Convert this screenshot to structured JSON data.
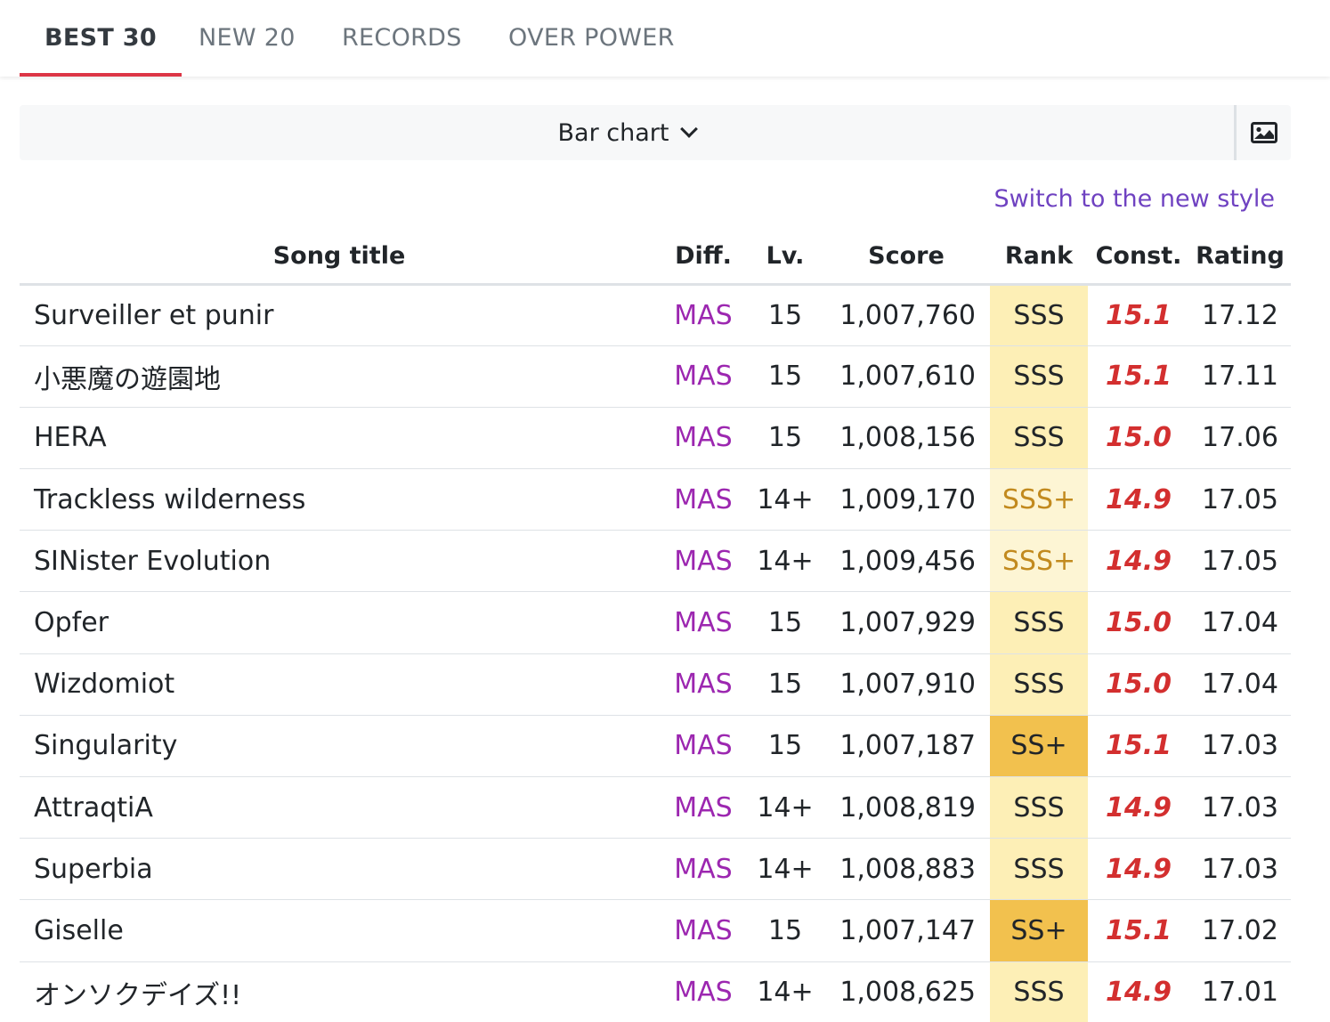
{
  "tabs": [
    {
      "label": "BEST 30",
      "active": true
    },
    {
      "label": "NEW 20",
      "active": false
    },
    {
      "label": "RECORDS",
      "active": false
    },
    {
      "label": "OVER POWER",
      "active": false
    }
  ],
  "toolbar": {
    "chart_select_label": "Bar chart",
    "image_icon": "image-icon"
  },
  "switch_link": "Switch to the new style",
  "table": {
    "headers": {
      "title": "Song title",
      "diff": "Diff.",
      "lv": "Lv.",
      "score": "Score",
      "rank": "Rank",
      "const": "Const.",
      "rating": "Rating"
    },
    "rows": [
      {
        "title": "Surveiller et punir",
        "diff": "MAS",
        "lv": "15",
        "score": "1,007,760",
        "rank": "SSS",
        "const": "15.1",
        "rating": "17.12"
      },
      {
        "title": "小悪魔の遊園地",
        "diff": "MAS",
        "lv": "15",
        "score": "1,007,610",
        "rank": "SSS",
        "const": "15.1",
        "rating": "17.11"
      },
      {
        "title": "HERA",
        "diff": "MAS",
        "lv": "15",
        "score": "1,008,156",
        "rank": "SSS",
        "const": "15.0",
        "rating": "17.06"
      },
      {
        "title": "Trackless wilderness",
        "diff": "MAS",
        "lv": "14+",
        "score": "1,009,170",
        "rank": "SSS+",
        "const": "14.9",
        "rating": "17.05"
      },
      {
        "title": "SINister Evolution",
        "diff": "MAS",
        "lv": "14+",
        "score": "1,009,456",
        "rank": "SSS+",
        "const": "14.9",
        "rating": "17.05"
      },
      {
        "title": "Opfer",
        "diff": "MAS",
        "lv": "15",
        "score": "1,007,929",
        "rank": "SSS",
        "const": "15.0",
        "rating": "17.04"
      },
      {
        "title": "Wizdomiot",
        "diff": "MAS",
        "lv": "15",
        "score": "1,007,910",
        "rank": "SSS",
        "const": "15.0",
        "rating": "17.04"
      },
      {
        "title": "Singularity",
        "diff": "MAS",
        "lv": "15",
        "score": "1,007,187",
        "rank": "SS+",
        "const": "15.1",
        "rating": "17.03"
      },
      {
        "title": "AttraqtiA",
        "diff": "MAS",
        "lv": "14+",
        "score": "1,008,819",
        "rank": "SSS",
        "const": "14.9",
        "rating": "17.03"
      },
      {
        "title": "Superbia",
        "diff": "MAS",
        "lv": "14+",
        "score": "1,008,883",
        "rank": "SSS",
        "const": "14.9",
        "rating": "17.03"
      },
      {
        "title": "Giselle",
        "diff": "MAS",
        "lv": "15",
        "score": "1,007,147",
        "rank": "SS+",
        "const": "15.1",
        "rating": "17.02"
      },
      {
        "title": "オンソクデイズ!!",
        "diff": "MAS",
        "lv": "14+",
        "score": "1,008,625",
        "rank": "SSS",
        "const": "14.9",
        "rating": "17.01"
      }
    ]
  },
  "colors": {
    "active_tab_underline": "#dc3545",
    "diff_mas": "#9c27b0",
    "const": "#d32f2f",
    "link": "#6f42c1",
    "rank_SSS_bg": "#fdefb6",
    "rank_SSS_plus_bg": "#fdf5d4",
    "rank_SS_plus_bg": "#f2c14e"
  }
}
